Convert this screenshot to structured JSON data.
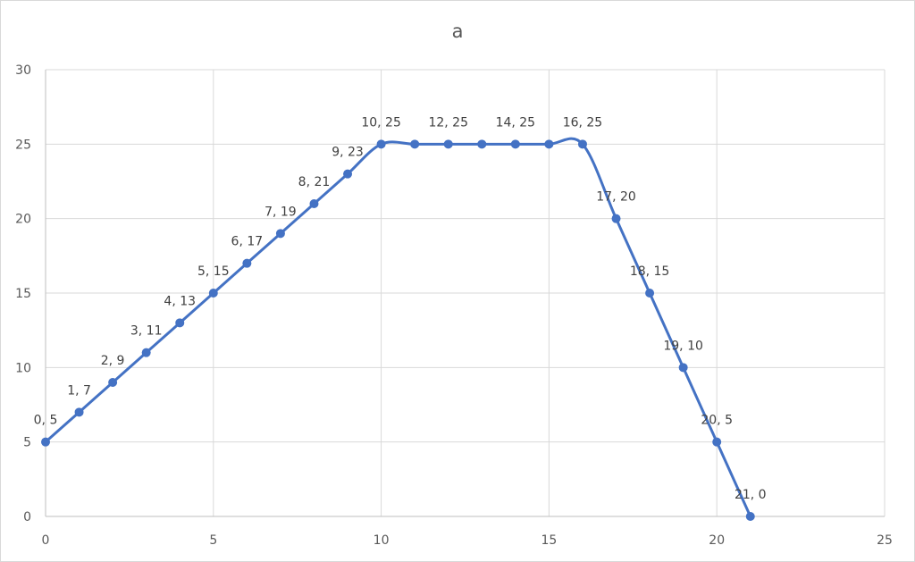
{
  "chart_data": {
    "type": "scatter",
    "title": "a",
    "xlabel": "",
    "ylabel": "",
    "xlim": [
      0,
      25
    ],
    "ylim": [
      0,
      30
    ],
    "xticks": [
      0,
      5,
      10,
      15,
      20,
      25
    ],
    "yticks": [
      0,
      5,
      10,
      15,
      20,
      25,
      30
    ],
    "grid": true,
    "smooth_line": true,
    "series": [
      {
        "color": "#4472c4",
        "points": [
          {
            "x": 0,
            "y": 5,
            "label": "0, 5"
          },
          {
            "x": 1,
            "y": 7,
            "label": "1, 7"
          },
          {
            "x": 2,
            "y": 9,
            "label": "2, 9"
          },
          {
            "x": 3,
            "y": 11,
            "label": "3, 11"
          },
          {
            "x": 4,
            "y": 13,
            "label": "4, 13"
          },
          {
            "x": 5,
            "y": 15,
            "label": "5, 15"
          },
          {
            "x": 6,
            "y": 17,
            "label": "6, 17"
          },
          {
            "x": 7,
            "y": 19,
            "label": "7, 19"
          },
          {
            "x": 8,
            "y": 21,
            "label": "8, 21"
          },
          {
            "x": 9,
            "y": 23,
            "label": "9, 23"
          },
          {
            "x": 10,
            "y": 25,
            "label": "10, 25"
          },
          {
            "x": 11,
            "y": 25,
            "label": ""
          },
          {
            "x": 12,
            "y": 25,
            "label": "12, 25"
          },
          {
            "x": 13,
            "y": 25,
            "label": ""
          },
          {
            "x": 14,
            "y": 25,
            "label": "14, 25"
          },
          {
            "x": 15,
            "y": 25,
            "label": ""
          },
          {
            "x": 16,
            "y": 25,
            "label": "16, 25"
          },
          {
            "x": 17,
            "y": 20,
            "label": "17, 20"
          },
          {
            "x": 18,
            "y": 15,
            "label": "18, 15"
          },
          {
            "x": 19,
            "y": 10,
            "label": "19, 10"
          },
          {
            "x": 20,
            "y": 5,
            "label": "20, 5"
          },
          {
            "x": 21,
            "y": 0,
            "label": "21, 0"
          }
        ]
      }
    ]
  }
}
